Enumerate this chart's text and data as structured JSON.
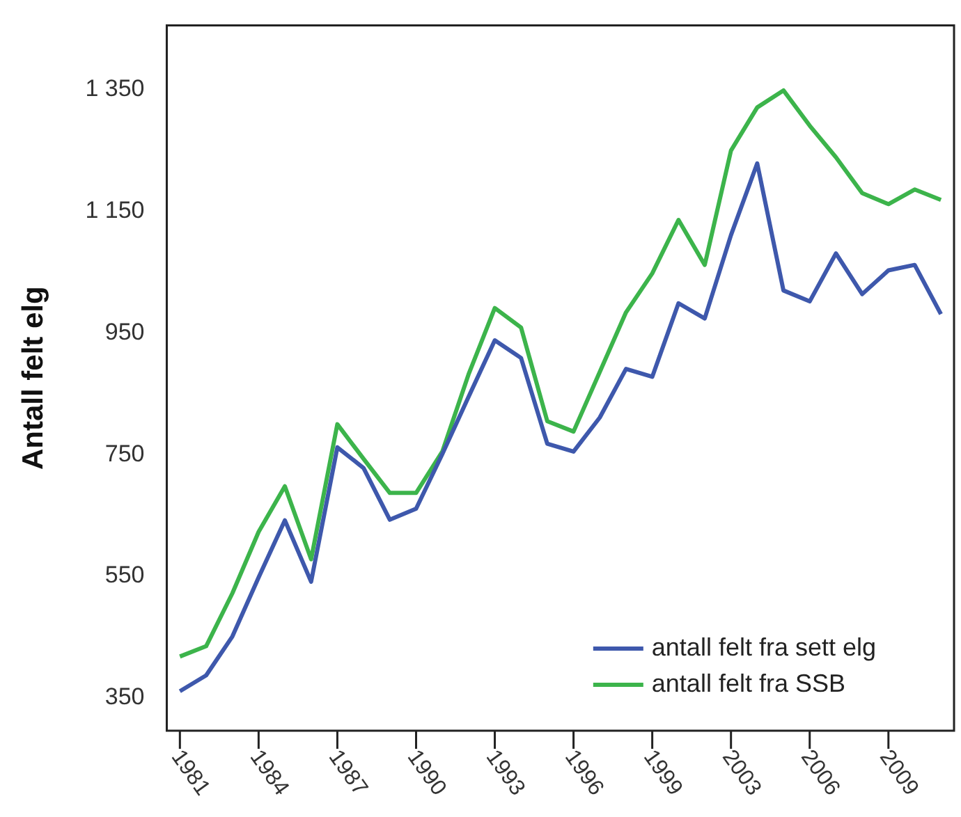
{
  "chart_data": {
    "type": "line",
    "ylabel": "Antall felt elg",
    "categories": [
      "1981",
      null,
      null,
      "1984",
      null,
      null,
      "1987",
      null,
      null,
      "1990",
      null,
      null,
      "1993",
      null,
      null,
      "1996",
      null,
      null,
      "1999",
      null,
      null,
      "2003",
      null,
      null,
      "2006",
      null,
      null,
      "2009",
      null,
      null
    ],
    "series": [
      {
        "name": "antall felt fra sett elg",
        "color": "#3e58ac",
        "values": [
          361,
          387,
          451,
          548,
          642,
          541,
          762,
          728,
          643,
          661,
          751,
          845,
          938,
          909,
          768,
          755,
          811,
          891,
          878,
          999,
          974,
          1111,
          1229,
          1020,
          1002,
          1081,
          1014,
          1053,
          1062,
          981
        ]
      },
      {
        "name": "antall felt fra SSB",
        "color": "#3cb44b",
        "values": [
          418,
          435,
          522,
          623,
          698,
          578,
          800,
          743,
          687,
          687,
          755,
          882,
          991,
          959,
          805,
          788,
          886,
          984,
          1048,
          1136,
          1062,
          1250,
          1321,
          1349,
          1291,
          1239,
          1180,
          1162,
          1186,
          1169
        ]
      }
    ],
    "ylim": [
      296,
      1456
    ],
    "yticks": [
      {
        "value": 350,
        "label": "350"
      },
      {
        "value": 550,
        "label": "550"
      },
      {
        "value": 750,
        "label": "750"
      },
      {
        "value": 950,
        "label": "950"
      },
      {
        "value": 1150,
        "label": "1 150"
      },
      {
        "value": 1350,
        "label": "1 350"
      }
    ],
    "grid": false,
    "legend": "bottom right",
    "marker": "none",
    "line_style": "solid"
  }
}
